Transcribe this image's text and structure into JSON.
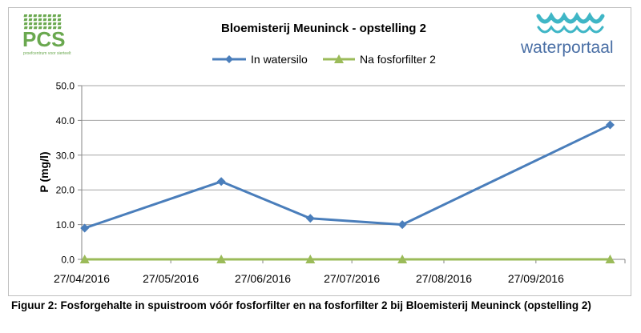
{
  "logos": {
    "pcs_text": "PCS",
    "pcs_subtext": "proefcentrum voor sierteelt",
    "waterportaal_text": "waterportaal"
  },
  "chart_data": {
    "type": "line",
    "title": "Bloemisterij Meuninck - opstelling 2",
    "xlabel": "",
    "ylabel": "P (mg/l)",
    "ylim": [
      0,
      50
    ],
    "yticks": [
      "0.0",
      "10.0",
      "20.0",
      "30.0",
      "40.0",
      "50.0"
    ],
    "xticks": [
      "27/04/2016",
      "27/05/2016",
      "27/06/2016",
      "27/07/2016",
      "27/08/2016",
      "27/09/2016"
    ],
    "xtick_dates": [
      "2016-04-27",
      "2016-05-27",
      "2016-06-27",
      "2016-07-27",
      "2016-08-27",
      "2016-09-27"
    ],
    "xlim": [
      "2016-04-27",
      "2016-10-27"
    ],
    "grid": "horizontal",
    "legend_position": "top",
    "series": [
      {
        "name": "In watersilo",
        "color": "#4a7ebb",
        "marker": "diamond",
        "x": [
          "2016-04-28",
          "2016-06-13",
          "2016-07-13",
          "2016-08-13",
          "2016-10-22"
        ],
        "values": [
          9.0,
          22.4,
          11.8,
          10.0,
          38.7
        ]
      },
      {
        "name": "Na fosforfilter 2",
        "color": "#9bbb59",
        "marker": "triangle",
        "x": [
          "2016-04-28",
          "2016-06-13",
          "2016-07-13",
          "2016-08-13",
          "2016-10-22"
        ],
        "values": [
          0.0,
          0.0,
          0.0,
          0.0,
          0.0
        ]
      }
    ]
  },
  "caption": "Figuur 2: Fosforgehalte in spuistroom vóór fosforfilter en na fosforfilter 2 bij Bloemisterij Meuninck (opstelling 2)"
}
